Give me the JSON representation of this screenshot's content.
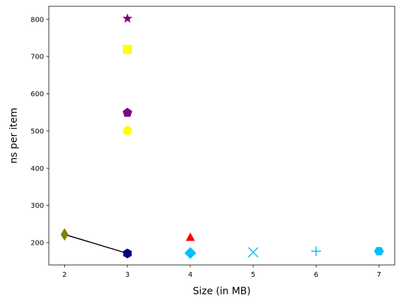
{
  "chart_data": {
    "type": "scatter",
    "title": "",
    "xlabel": "Size (in MB)",
    "ylabel": "ns per item",
    "xlim": [
      1.75,
      7.25
    ],
    "ylim": [
      140,
      835
    ],
    "xticks": [
      2,
      3,
      4,
      5,
      6,
      7
    ],
    "yticks": [
      200,
      300,
      400,
      500,
      600,
      700,
      800
    ],
    "grid": false,
    "legend": "none",
    "series": [
      {
        "name": "line",
        "kind": "line",
        "color": "#000000",
        "x": [
          2,
          3
        ],
        "y": [
          222,
          171
        ]
      },
      {
        "name": "olive-diamond",
        "marker": "thin_diamond",
        "color": "#808000",
        "x": [
          2
        ],
        "y": [
          222
        ]
      },
      {
        "name": "navy-hexagon",
        "marker": "hexagon",
        "color": "#000080",
        "x": [
          3
        ],
        "y": [
          171
        ]
      },
      {
        "name": "purple-star",
        "marker": "star",
        "color": "#800080",
        "x": [
          3
        ],
        "y": [
          802
        ]
      },
      {
        "name": "yellow-square",
        "marker": "square",
        "color": "#ffff00",
        "x": [
          3
        ],
        "y": [
          719
        ]
      },
      {
        "name": "purple-pentagon",
        "marker": "pentagon",
        "color": "#800080",
        "x": [
          3
        ],
        "y": [
          549
        ]
      },
      {
        "name": "yellow-octagon",
        "marker": "octagon",
        "color": "#ffff00",
        "x": [
          3
        ],
        "y": [
          501
        ]
      },
      {
        "name": "red-triangle",
        "marker": "triangle",
        "color": "#ff0000",
        "x": [
          4
        ],
        "y": [
          214
        ]
      },
      {
        "name": "skyblue-diamond",
        "marker": "diamond",
        "color": "#00bfff",
        "x": [
          4
        ],
        "y": [
          172
        ]
      },
      {
        "name": "skyblue-x",
        "marker": "x",
        "color": "#00bfff",
        "x": [
          5
        ],
        "y": [
          174
        ]
      },
      {
        "name": "skyblue-plus",
        "marker": "plus",
        "color": "#00bfff",
        "x": [
          6
        ],
        "y": [
          177
        ]
      },
      {
        "name": "skyblue-hexagon",
        "marker": "hexagon2",
        "color": "#00bfff",
        "x": [
          7
        ],
        "y": [
          177
        ]
      }
    ]
  }
}
